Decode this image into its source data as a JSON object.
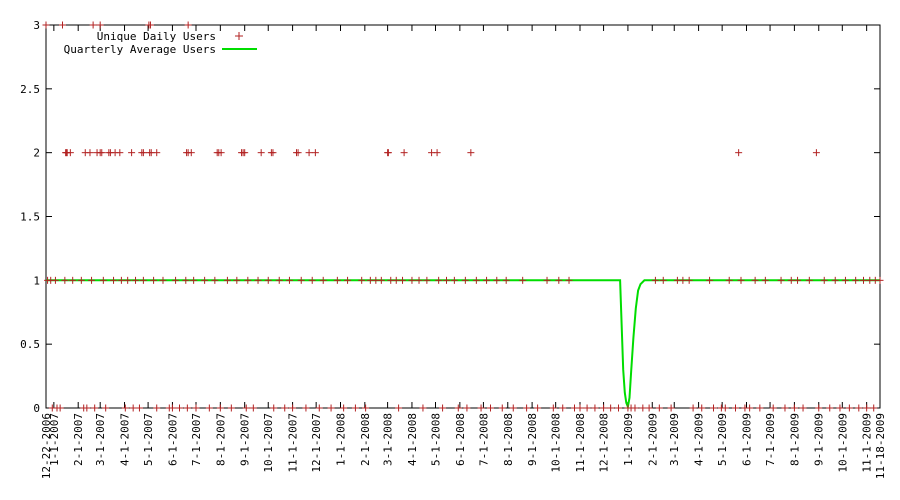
{
  "chart_data": {
    "type": "scatter",
    "x_axis": {
      "kind": "date",
      "min": "2006-12-22",
      "max": "2009-11-18",
      "tick_labels": [
        "12-22-2006",
        "1-1-2007",
        "2-1-2007",
        "3-1-2007",
        "4-1-2007",
        "5-1-2007",
        "6-1-2007",
        "7-1-2007",
        "8-1-2007",
        "9-1-2007",
        "10-1-2007",
        "11-1-2007",
        "12-1-2007",
        "1-1-2008",
        "2-1-2008",
        "3-1-2008",
        "4-1-2008",
        "5-1-2008",
        "6-1-2008",
        "7-1-2008",
        "8-1-2008",
        "9-1-2008",
        "10-1-2008",
        "11-1-2008",
        "12-1-2008",
        "1-1-2009",
        "2-1-2009",
        "3-1-2009",
        "4-1-2009",
        "5-1-2009",
        "6-1-2009",
        "7-1-2009",
        "8-1-2009",
        "9-1-2009",
        "10-1-2009",
        "11-1-2009",
        "11-18-2009"
      ],
      "tick_dates": [
        "2006-12-22",
        "2007-01-01",
        "2007-02-01",
        "2007-03-01",
        "2007-04-01",
        "2007-05-01",
        "2007-06-01",
        "2007-07-01",
        "2007-08-01",
        "2007-09-01",
        "2007-10-01",
        "2007-11-01",
        "2007-12-01",
        "2008-01-01",
        "2008-02-01",
        "2008-03-01",
        "2008-04-01",
        "2008-05-01",
        "2008-06-01",
        "2008-07-01",
        "2008-08-01",
        "2008-09-01",
        "2008-10-01",
        "2008-11-01",
        "2008-12-01",
        "2009-01-01",
        "2009-02-01",
        "2009-03-01",
        "2009-04-01",
        "2009-05-01",
        "2009-06-01",
        "2009-07-01",
        "2009-08-01",
        "2009-09-01",
        "2009-10-01",
        "2009-11-01",
        "2009-11-18"
      ]
    },
    "y_axis": {
      "min": 0,
      "max": 3,
      "tick_labels": [
        "0",
        "0.5",
        "1",
        "1.5",
        "2",
        "2.5",
        "3"
      ],
      "tick_values": [
        0,
        0.5,
        1,
        1.5,
        2,
        2.5,
        3
      ]
    },
    "legend": {
      "placement": "top-left",
      "box": false
    },
    "grid": false,
    "colors": {
      "daily": "#b22222",
      "quarterly": "#00dd00"
    },
    "series": [
      {
        "name": "Unique Daily Users",
        "style": "points-plus",
        "points": [
          [
            "2006-12-22",
            3
          ],
          [
            "2007-01-12",
            3
          ],
          [
            "2007-02-20",
            3
          ],
          [
            "2007-03-01",
            3
          ],
          [
            "2007-05-02",
            3
          ],
          [
            "2007-05-04",
            3
          ],
          [
            "2007-06-21",
            3
          ],
          [
            "2007-01-16",
            2
          ],
          [
            "2007-01-17",
            2
          ],
          [
            "2007-01-18",
            2
          ],
          [
            "2007-01-22",
            2
          ],
          [
            "2007-02-10",
            2
          ],
          [
            "2007-02-16",
            2
          ],
          [
            "2007-02-25",
            2
          ],
          [
            "2007-03-01",
            2
          ],
          [
            "2007-03-03",
            2
          ],
          [
            "2007-03-12",
            2
          ],
          [
            "2007-03-14",
            2
          ],
          [
            "2007-03-20",
            2
          ],
          [
            "2007-03-26",
            2
          ],
          [
            "2007-04-10",
            2
          ],
          [
            "2007-04-23",
            2
          ],
          [
            "2007-04-25",
            2
          ],
          [
            "2007-05-03",
            2
          ],
          [
            "2007-05-05",
            2
          ],
          [
            "2007-05-12",
            2
          ],
          [
            "2007-06-19",
            2
          ],
          [
            "2007-06-21",
            2
          ],
          [
            "2007-06-25",
            2
          ],
          [
            "2007-07-28",
            2
          ],
          [
            "2007-07-30",
            2
          ],
          [
            "2007-08-02",
            2
          ],
          [
            "2007-08-28",
            2
          ],
          [
            "2007-08-30",
            2
          ],
          [
            "2007-09-01",
            2
          ],
          [
            "2007-09-22",
            2
          ],
          [
            "2007-10-05",
            2
          ],
          [
            "2007-10-07",
            2
          ],
          [
            "2007-11-06",
            2
          ],
          [
            "2007-11-08",
            2
          ],
          [
            "2007-11-22",
            2
          ],
          [
            "2007-11-30",
            2
          ],
          [
            "2008-03-01",
            2
          ],
          [
            "2008-03-02",
            2
          ],
          [
            "2008-03-22",
            2
          ],
          [
            "2008-04-26",
            2
          ],
          [
            "2008-05-03",
            2
          ],
          [
            "2008-06-15",
            2
          ],
          [
            "2009-05-22",
            2
          ],
          [
            "2009-08-29",
            2
          ],
          [
            "2006-12-24",
            1
          ],
          [
            "2006-12-28",
            1
          ],
          [
            "2007-01-03",
            1
          ],
          [
            "2007-01-15",
            1
          ],
          [
            "2007-01-25",
            1
          ],
          [
            "2007-02-05",
            1
          ],
          [
            "2007-02-18",
            1
          ],
          [
            "2007-03-05",
            1
          ],
          [
            "2007-03-18",
            1
          ],
          [
            "2007-03-28",
            1
          ],
          [
            "2007-04-05",
            1
          ],
          [
            "2007-04-15",
            1
          ],
          [
            "2007-04-25",
            1
          ],
          [
            "2007-05-08",
            1
          ],
          [
            "2007-05-20",
            1
          ],
          [
            "2007-06-05",
            1
          ],
          [
            "2007-06-18",
            1
          ],
          [
            "2007-06-28",
            1
          ],
          [
            "2007-07-12",
            1
          ],
          [
            "2007-07-25",
            1
          ],
          [
            "2007-08-10",
            1
          ],
          [
            "2007-08-22",
            1
          ],
          [
            "2007-09-05",
            1
          ],
          [
            "2007-09-18",
            1
          ],
          [
            "2007-10-01",
            1
          ],
          [
            "2007-10-15",
            1
          ],
          [
            "2007-10-28",
            1
          ],
          [
            "2007-11-12",
            1
          ],
          [
            "2007-11-26",
            1
          ],
          [
            "2007-12-10",
            1
          ],
          [
            "2007-12-28",
            1
          ],
          [
            "2008-01-10",
            1
          ],
          [
            "2008-01-28",
            1
          ],
          [
            "2008-02-08",
            1
          ],
          [
            "2008-02-15",
            1
          ],
          [
            "2008-02-22",
            1
          ],
          [
            "2008-03-05",
            1
          ],
          [
            "2008-03-12",
            1
          ],
          [
            "2008-03-20",
            1
          ],
          [
            "2008-04-01",
            1
          ],
          [
            "2008-04-10",
            1
          ],
          [
            "2008-04-20",
            1
          ],
          [
            "2008-05-05",
            1
          ],
          [
            "2008-05-15",
            1
          ],
          [
            "2008-05-25",
            1
          ],
          [
            "2008-06-08",
            1
          ],
          [
            "2008-06-22",
            1
          ],
          [
            "2008-07-05",
            1
          ],
          [
            "2008-07-18",
            1
          ],
          [
            "2008-07-30",
            1
          ],
          [
            "2008-08-20",
            1
          ],
          [
            "2008-09-20",
            1
          ],
          [
            "2008-10-05",
            1
          ],
          [
            "2008-10-18",
            1
          ],
          [
            "2009-02-05",
            1
          ],
          [
            "2009-02-15",
            1
          ],
          [
            "2009-03-05",
            1
          ],
          [
            "2009-03-12",
            1
          ],
          [
            "2009-03-20",
            1
          ],
          [
            "2009-04-15",
            1
          ],
          [
            "2009-05-10",
            1
          ],
          [
            "2009-05-25",
            1
          ],
          [
            "2009-06-12",
            1
          ],
          [
            "2009-06-25",
            1
          ],
          [
            "2009-07-15",
            1
          ],
          [
            "2009-07-28",
            1
          ],
          [
            "2009-08-05",
            1
          ],
          [
            "2009-08-20",
            1
          ],
          [
            "2009-09-08",
            1
          ],
          [
            "2009-09-22",
            1
          ],
          [
            "2009-10-05",
            1
          ],
          [
            "2009-10-18",
            1
          ],
          [
            "2009-10-28",
            1
          ],
          [
            "2009-11-05",
            1
          ],
          [
            "2009-11-12",
            1
          ],
          [
            "2009-11-18",
            1
          ],
          [
            "2006-12-30",
            0
          ],
          [
            "2007-01-05",
            0
          ],
          [
            "2007-01-09",
            0
          ],
          [
            "2007-02-08",
            0
          ],
          [
            "2007-02-12",
            0
          ],
          [
            "2007-02-22",
            0
          ],
          [
            "2007-03-08",
            0
          ],
          [
            "2007-04-02",
            0
          ],
          [
            "2007-04-12",
            0
          ],
          [
            "2007-04-20",
            0
          ],
          [
            "2007-05-12",
            0
          ],
          [
            "2007-05-28",
            0
          ],
          [
            "2007-06-01",
            0
          ],
          [
            "2007-06-10",
            0
          ],
          [
            "2007-06-20",
            0
          ],
          [
            "2007-07-01",
            0
          ],
          [
            "2007-07-18",
            0
          ],
          [
            "2007-08-01",
            0
          ],
          [
            "2007-08-15",
            0
          ],
          [
            "2007-09-03",
            0
          ],
          [
            "2007-09-12",
            0
          ],
          [
            "2007-10-08",
            0
          ],
          [
            "2007-10-22",
            0
          ],
          [
            "2007-11-01",
            0
          ],
          [
            "2007-11-18",
            0
          ],
          [
            "2007-12-05",
            0
          ],
          [
            "2007-12-20",
            0
          ],
          [
            "2008-01-05",
            0
          ],
          [
            "2008-01-20",
            0
          ],
          [
            "2008-02-02",
            0
          ],
          [
            "2008-03-15",
            0
          ],
          [
            "2008-04-15",
            0
          ],
          [
            "2008-05-10",
            0
          ],
          [
            "2008-05-30",
            0
          ],
          [
            "2008-06-10",
            0
          ],
          [
            "2008-06-28",
            0
          ],
          [
            "2008-07-10",
            0
          ],
          [
            "2008-07-25",
            0
          ],
          [
            "2008-08-08",
            0
          ],
          [
            "2008-08-25",
            0
          ],
          [
            "2008-09-08",
            0
          ],
          [
            "2008-09-28",
            0
          ],
          [
            "2008-10-10",
            0
          ],
          [
            "2008-10-25",
            0
          ],
          [
            "2008-11-01",
            0
          ],
          [
            "2008-11-10",
            0
          ],
          [
            "2008-11-20",
            0
          ],
          [
            "2008-12-01",
            0
          ],
          [
            "2008-12-10",
            0
          ],
          [
            "2008-12-20",
            0
          ],
          [
            "2009-01-01",
            0
          ],
          [
            "2009-01-05",
            0
          ],
          [
            "2009-01-10",
            0
          ],
          [
            "2009-01-20",
            0
          ],
          [
            "2009-01-28",
            0
          ],
          [
            "2009-02-10",
            0
          ],
          [
            "2009-02-25",
            0
          ],
          [
            "2009-03-25",
            0
          ],
          [
            "2009-04-05",
            0
          ],
          [
            "2009-04-20",
            0
          ],
          [
            "2009-04-30",
            0
          ],
          [
            "2009-05-05",
            0
          ],
          [
            "2009-05-18",
            0
          ],
          [
            "2009-05-30",
            0
          ],
          [
            "2009-06-05",
            0
          ],
          [
            "2009-06-18",
            0
          ],
          [
            "2009-07-05",
            0
          ],
          [
            "2009-07-20",
            0
          ],
          [
            "2009-08-01",
            0
          ],
          [
            "2009-08-12",
            0
          ],
          [
            "2009-09-01",
            0
          ],
          [
            "2009-09-15",
            0
          ],
          [
            "2009-09-28",
            0
          ],
          [
            "2009-10-10",
            0
          ],
          [
            "2009-10-22",
            0
          ],
          [
            "2009-11-01",
            0
          ],
          [
            "2009-11-10",
            0
          ]
        ]
      },
      {
        "name": "Quarterly Average Users",
        "style": "line",
        "points": [
          [
            "2006-12-22",
            1
          ],
          [
            "2008-12-22",
            1
          ],
          [
            "2008-12-26",
            0.3
          ],
          [
            "2008-12-28",
            0.12
          ],
          [
            "2008-12-30",
            0.04
          ],
          [
            "2009-01-01",
            0.01
          ],
          [
            "2009-01-03",
            0.08
          ],
          [
            "2009-01-05",
            0.28
          ],
          [
            "2009-01-08",
            0.55
          ],
          [
            "2009-01-11",
            0.78
          ],
          [
            "2009-01-14",
            0.92
          ],
          [
            "2009-01-17",
            0.97
          ],
          [
            "2009-01-22",
            1
          ],
          [
            "2009-11-18",
            1
          ]
        ]
      }
    ]
  }
}
